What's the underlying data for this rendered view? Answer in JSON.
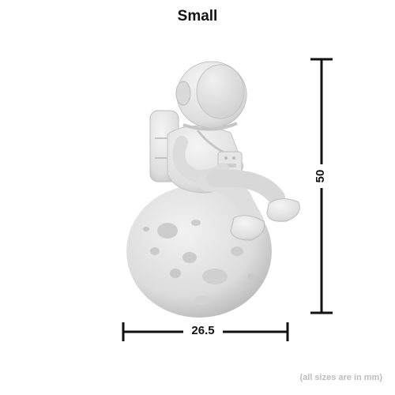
{
  "title": "Small",
  "dimensions": {
    "width": "26.5",
    "height": "50"
  },
  "footnote": "(all sizes are in mm)",
  "colors": {
    "line": "#111111",
    "model": "#e4e4e4",
    "footnote": "#bdbdbd"
  },
  "illustration": "astronaut-on-moon-figurine"
}
